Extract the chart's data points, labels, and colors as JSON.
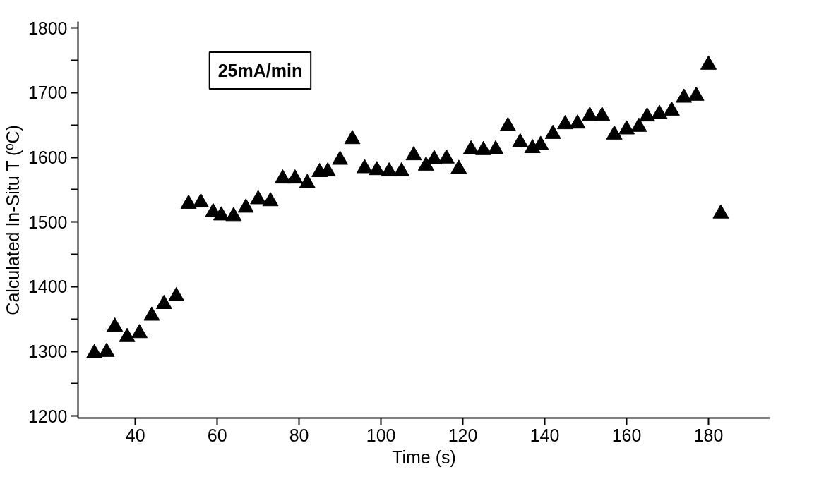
{
  "chart_data": {
    "type": "scatter",
    "xlabel": "Time (s)",
    "ylabel": "Calculated In-Situ T (ºC)",
    "annotations": [
      "25mA/min"
    ],
    "x": [
      30,
      33,
      35,
      38,
      41,
      44,
      47,
      50,
      53,
      56,
      59,
      61,
      64,
      67,
      70,
      73,
      76,
      79,
      82,
      85,
      87,
      90,
      93,
      96,
      99,
      102,
      105,
      108,
      111,
      113,
      116,
      119,
      122,
      125,
      128,
      131,
      134,
      137,
      139,
      142,
      145,
      148,
      151,
      154,
      157,
      160,
      163,
      165,
      168,
      171,
      174,
      177,
      180,
      183
    ],
    "series": [
      {
        "color": "#000000",
        "values": [
          1297,
          1299,
          1338,
          1322,
          1328,
          1355,
          1373,
          1385,
          1528,
          1530,
          1515,
          1510,
          1509,
          1522,
          1535,
          1532,
          1567,
          1567,
          1560,
          1577,
          1578,
          1596,
          1628,
          1583,
          1580,
          1578,
          1578,
          1603,
          1587,
          1597,
          1598,
          1582,
          1612,
          1611,
          1612,
          1648,
          1623,
          1614,
          1619,
          1636,
          1651,
          1652,
          1664,
          1664,
          1635,
          1643,
          1647,
          1663,
          1667,
          1672,
          1692,
          1695,
          1743,
          1513
        ]
      }
    ],
    "marker": "triangle",
    "xlim": [
      26,
      195
    ],
    "ylim": [
      1197,
      1810
    ],
    "xticks": [
      40,
      60,
      80,
      100,
      120,
      140,
      160,
      180
    ],
    "yticks": [
      1200,
      {
        "value": 1250,
        "label": null
      },
      1300,
      {
        "value": 1350,
        "label": null
      },
      1400,
      {
        "value": 1450,
        "label": null
      },
      1500,
      {
        "value": 1550,
        "label": null
      },
      1600,
      {
        "value": 1650,
        "label": null
      },
      1700,
      {
        "value": 1750,
        "label": null
      },
      1800
    ],
    "grid": false
  }
}
